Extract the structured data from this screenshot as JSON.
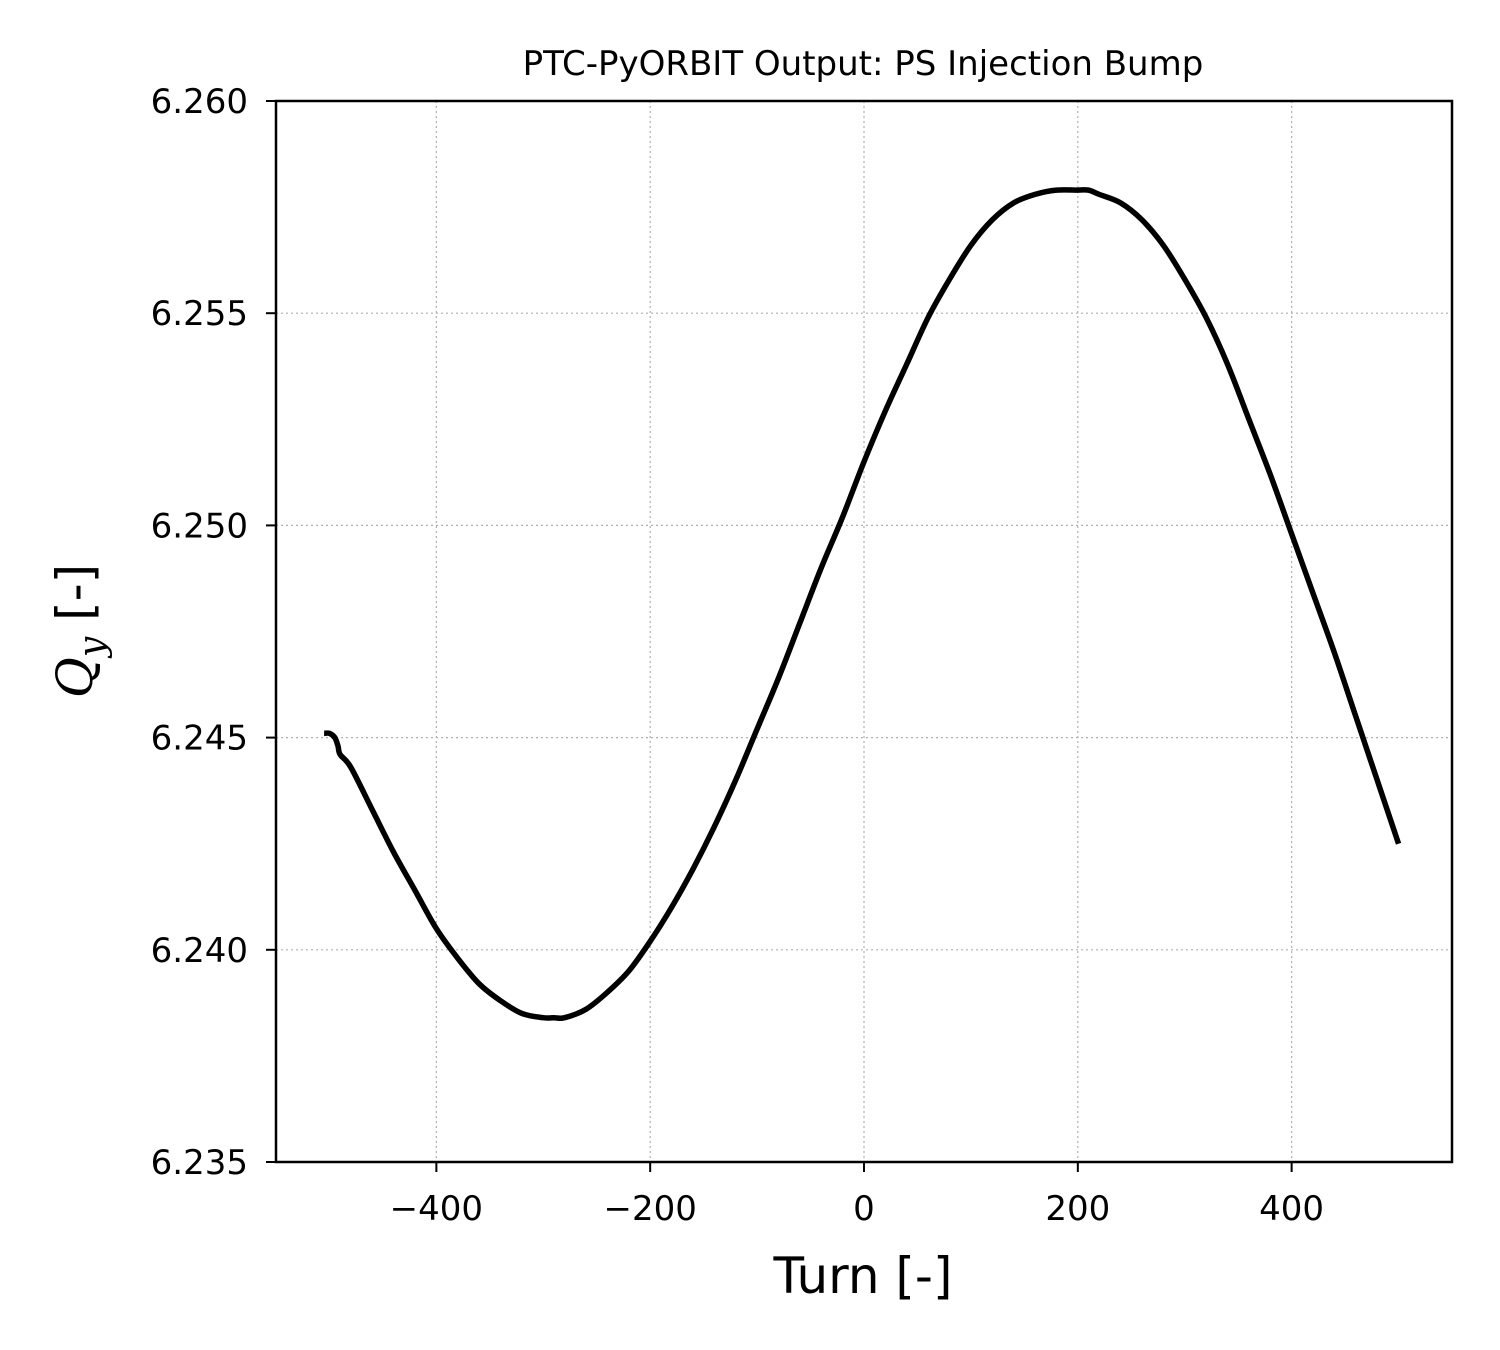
{
  "chart_data": {
    "type": "line",
    "title": "PTC-PyORBIT Output: PS Injection Bump",
    "xlabel": "Turn [-]",
    "ylabel_symbol": "Q",
    "ylabel_subscript": "y",
    "ylabel_unit": " [-]",
    "xlim": [
      -550,
      550
    ],
    "ylim": [
      6.235,
      6.26
    ],
    "xticks": [
      -400,
      -200,
      0,
      200,
      400
    ],
    "xtick_labels": [
      "−400",
      "−200",
      "0",
      "200",
      "400"
    ],
    "yticks": [
      6.235,
      6.24,
      6.245,
      6.25,
      6.255,
      6.26
    ],
    "ytick_labels": [
      "6.235",
      "6.240",
      "6.245",
      "6.250",
      "6.255",
      "6.260"
    ],
    "grid": true,
    "series": [
      {
        "color": "#000000",
        "x": [
          -505,
          -500,
          -495,
          -492,
          -490,
          -480,
          -460,
          -440,
          -420,
          -400,
          -380,
          -360,
          -340,
          -320,
          -300,
          -290,
          -280,
          -260,
          -240,
          -220,
          -200,
          -180,
          -160,
          -140,
          -120,
          -100,
          -80,
          -60,
          -40,
          -20,
          0,
          20,
          40,
          60,
          80,
          100,
          120,
          140,
          160,
          180,
          200,
          210,
          220,
          240,
          260,
          280,
          300,
          320,
          340,
          360,
          380,
          400,
          420,
          440,
          460,
          480,
          500
        ],
        "y": [
          6.2451,
          6.2451,
          6.245,
          6.2448,
          6.2446,
          6.2443,
          6.2433,
          6.2423,
          6.2414,
          6.2405,
          6.2398,
          6.2392,
          6.2388,
          6.2385,
          6.2384,
          6.2384,
          6.2384,
          6.2386,
          6.239,
          6.2395,
          6.2402,
          6.241,
          6.2419,
          6.2429,
          6.244,
          6.2452,
          6.2464,
          6.2477,
          6.249,
          6.2502,
          6.2515,
          6.2527,
          6.2538,
          6.2549,
          6.2558,
          6.2566,
          6.2572,
          6.2576,
          6.2578,
          6.2579,
          6.2579,
          6.2579,
          6.2578,
          6.2576,
          6.2572,
          6.2566,
          6.2558,
          6.2549,
          6.2538,
          6.2525,
          6.2512,
          6.2498,
          6.2484,
          6.247,
          6.2455,
          6.244,
          6.2425
        ]
      }
    ]
  }
}
